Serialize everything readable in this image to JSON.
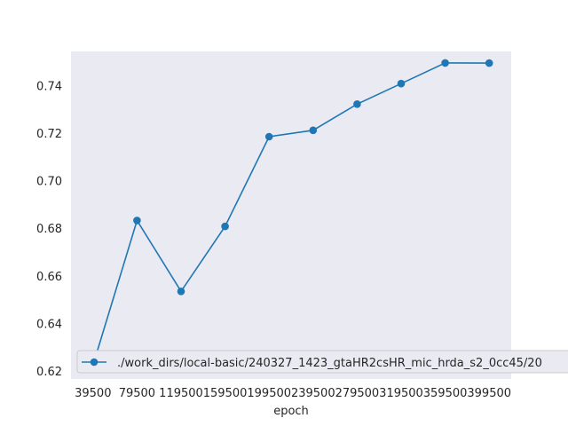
{
  "chart_data": {
    "type": "line",
    "title": "",
    "xlabel": "epoch",
    "ylabel": "",
    "categories": [
      "39500",
      "79500",
      "119500",
      "159500",
      "199500",
      "239500",
      "279500",
      "319500",
      "359500",
      "399500"
    ],
    "x": [
      39500,
      79500,
      119500,
      159500,
      199500,
      239500,
      279500,
      319500,
      359500,
      399500
    ],
    "series": [
      {
        "name": "./work_dirs/local-basic/240327_1423_gtaHR2csHR_mic_hrda_s2_0cc45/20",
        "values": [
          0.6225,
          0.6833,
          0.6535,
          0.6808,
          0.7185,
          0.7212,
          0.7322,
          0.7408,
          0.7495,
          0.7494
        ],
        "color": "#1f77b4"
      }
    ],
    "yticks": [
      "0.62",
      "0.64",
      "0.66",
      "0.68",
      "0.70",
      "0.72",
      "0.74"
    ],
    "ylim": [
      0.6167,
      0.7543
    ],
    "grid": false,
    "legend": "lower-left",
    "background_color": "#eaeaf2"
  }
}
